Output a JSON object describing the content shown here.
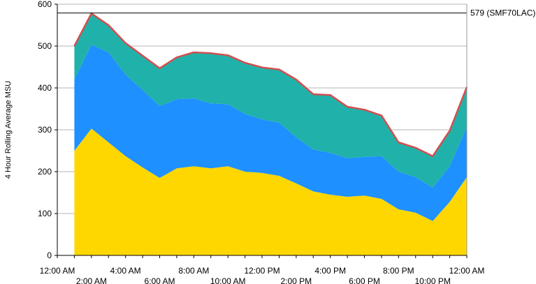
{
  "chart_data": {
    "type": "area",
    "stacked": true,
    "title": "",
    "ylabel": "4 Hour Rolling Average MSU",
    "xlabel": "",
    "ylim": [
      0,
      600
    ],
    "yticks": [
      0,
      100,
      200,
      300,
      400,
      500,
      600
    ],
    "grid": "horizontal",
    "x_hours": [
      0,
      1,
      2,
      3,
      4,
      5,
      6,
      7,
      8,
      9,
      10,
      11,
      12,
      13,
      14,
      15,
      16,
      17,
      18,
      19,
      20,
      21,
      22,
      23,
      24
    ],
    "xtick_labels": [
      "12:00 AM",
      "2:00 AM",
      "4:00 AM",
      "6:00 AM",
      "8:00 AM",
      "10:00 AM",
      "12:00 PM",
      "2:00 PM",
      "4:00 PM",
      "6:00 PM",
      "8:00 PM",
      "10:00 PM",
      "12:00 AM"
    ],
    "x_start_hour": 0,
    "x_end_hour": 24,
    "data_start_hour": 1,
    "series": [
      {
        "color": "#FFD700",
        "values": [
          250,
          303,
          270,
          237,
          210,
          185,
          208,
          213,
          208,
          213,
          200,
          197,
          190,
          172,
          153,
          145,
          140,
          143,
          135,
          110,
          102,
          82,
          128,
          187
        ]
      },
      {
        "color": "#1E90FF",
        "values": [
          170,
          200,
          215,
          195,
          185,
          172,
          165,
          162,
          155,
          148,
          138,
          128,
          127,
          110,
          100,
          100,
          92,
          92,
          102,
          90,
          85,
          80,
          85,
          120
        ]
      },
      {
        "color": "#20B2AA",
        "values": [
          80,
          75,
          65,
          75,
          82,
          90,
          100,
          110,
          120,
          117,
          122,
          124,
          127,
          138,
          132,
          138,
          123,
          113,
          97,
          70,
          70,
          75,
          85,
          95
        ]
      }
    ],
    "total_line_color": "#D05050",
    "reference_line": {
      "value": 579,
      "label": "579 (SMF70LAC)"
    }
  }
}
